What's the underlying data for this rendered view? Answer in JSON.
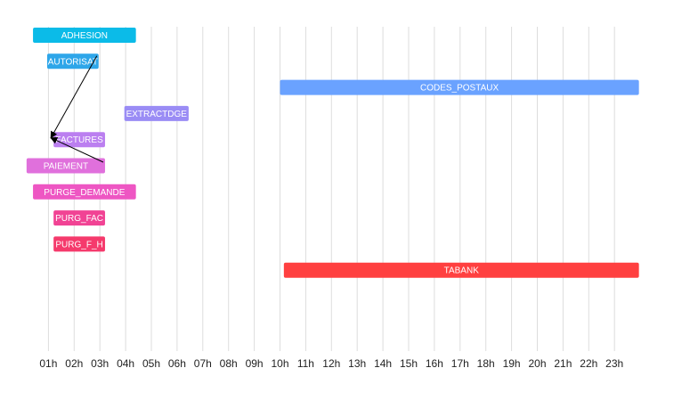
{
  "chart_data": {
    "type": "gantt",
    "x_unit": "hour",
    "x_ticks": [
      "01h",
      "02h",
      "03h",
      "04h",
      "05h",
      "06h",
      "07h",
      "08h",
      "09h",
      "10h",
      "11h",
      "12h",
      "13h",
      "14h",
      "15h",
      "16h",
      "17h",
      "18h",
      "19h",
      "20h",
      "21h",
      "22h",
      "23h"
    ],
    "xlim": [
      0,
      24
    ],
    "grid": true,
    "tasks": [
      {
        "label": "ADHESION",
        "start": 0.4,
        "end": 4.4,
        "color": "#0bbbe8"
      },
      {
        "label": "AUTORISAT",
        "start": 0.95,
        "end": 2.95,
        "color": "#2ea6e9"
      },
      {
        "label": "CODES_POSTAUX",
        "start": 10.0,
        "end": 23.95,
        "color": "#6aa2ff"
      },
      {
        "label": "EXTRACTDGE",
        "start": 3.95,
        "end": 6.45,
        "color": "#9a8cf5"
      },
      {
        "label": "FACTURES",
        "start": 1.2,
        "end": 3.2,
        "color": "#bb7ff0"
      },
      {
        "label": "PAIEMENT",
        "start": 0.15,
        "end": 3.2,
        "color": "#e070dc"
      },
      {
        "label": "PURGE_DEMANDE",
        "start": 0.4,
        "end": 4.4,
        "color": "#ee56c3"
      },
      {
        "label": "PURG_FAC",
        "start": 1.2,
        "end": 3.2,
        "color": "#f14394"
      },
      {
        "label": "PURG_F_H",
        "start": 1.2,
        "end": 3.2,
        "color": "#f53a6c"
      },
      {
        "label": "TABANK",
        "start": 10.15,
        "end": 23.95,
        "color": "#ff4040"
      }
    ],
    "dependencies": [
      {
        "from": "AUTORISAT",
        "to": "FACTURES"
      },
      {
        "from": "PAIEMENT",
        "to": "FACTURES"
      }
    ]
  }
}
